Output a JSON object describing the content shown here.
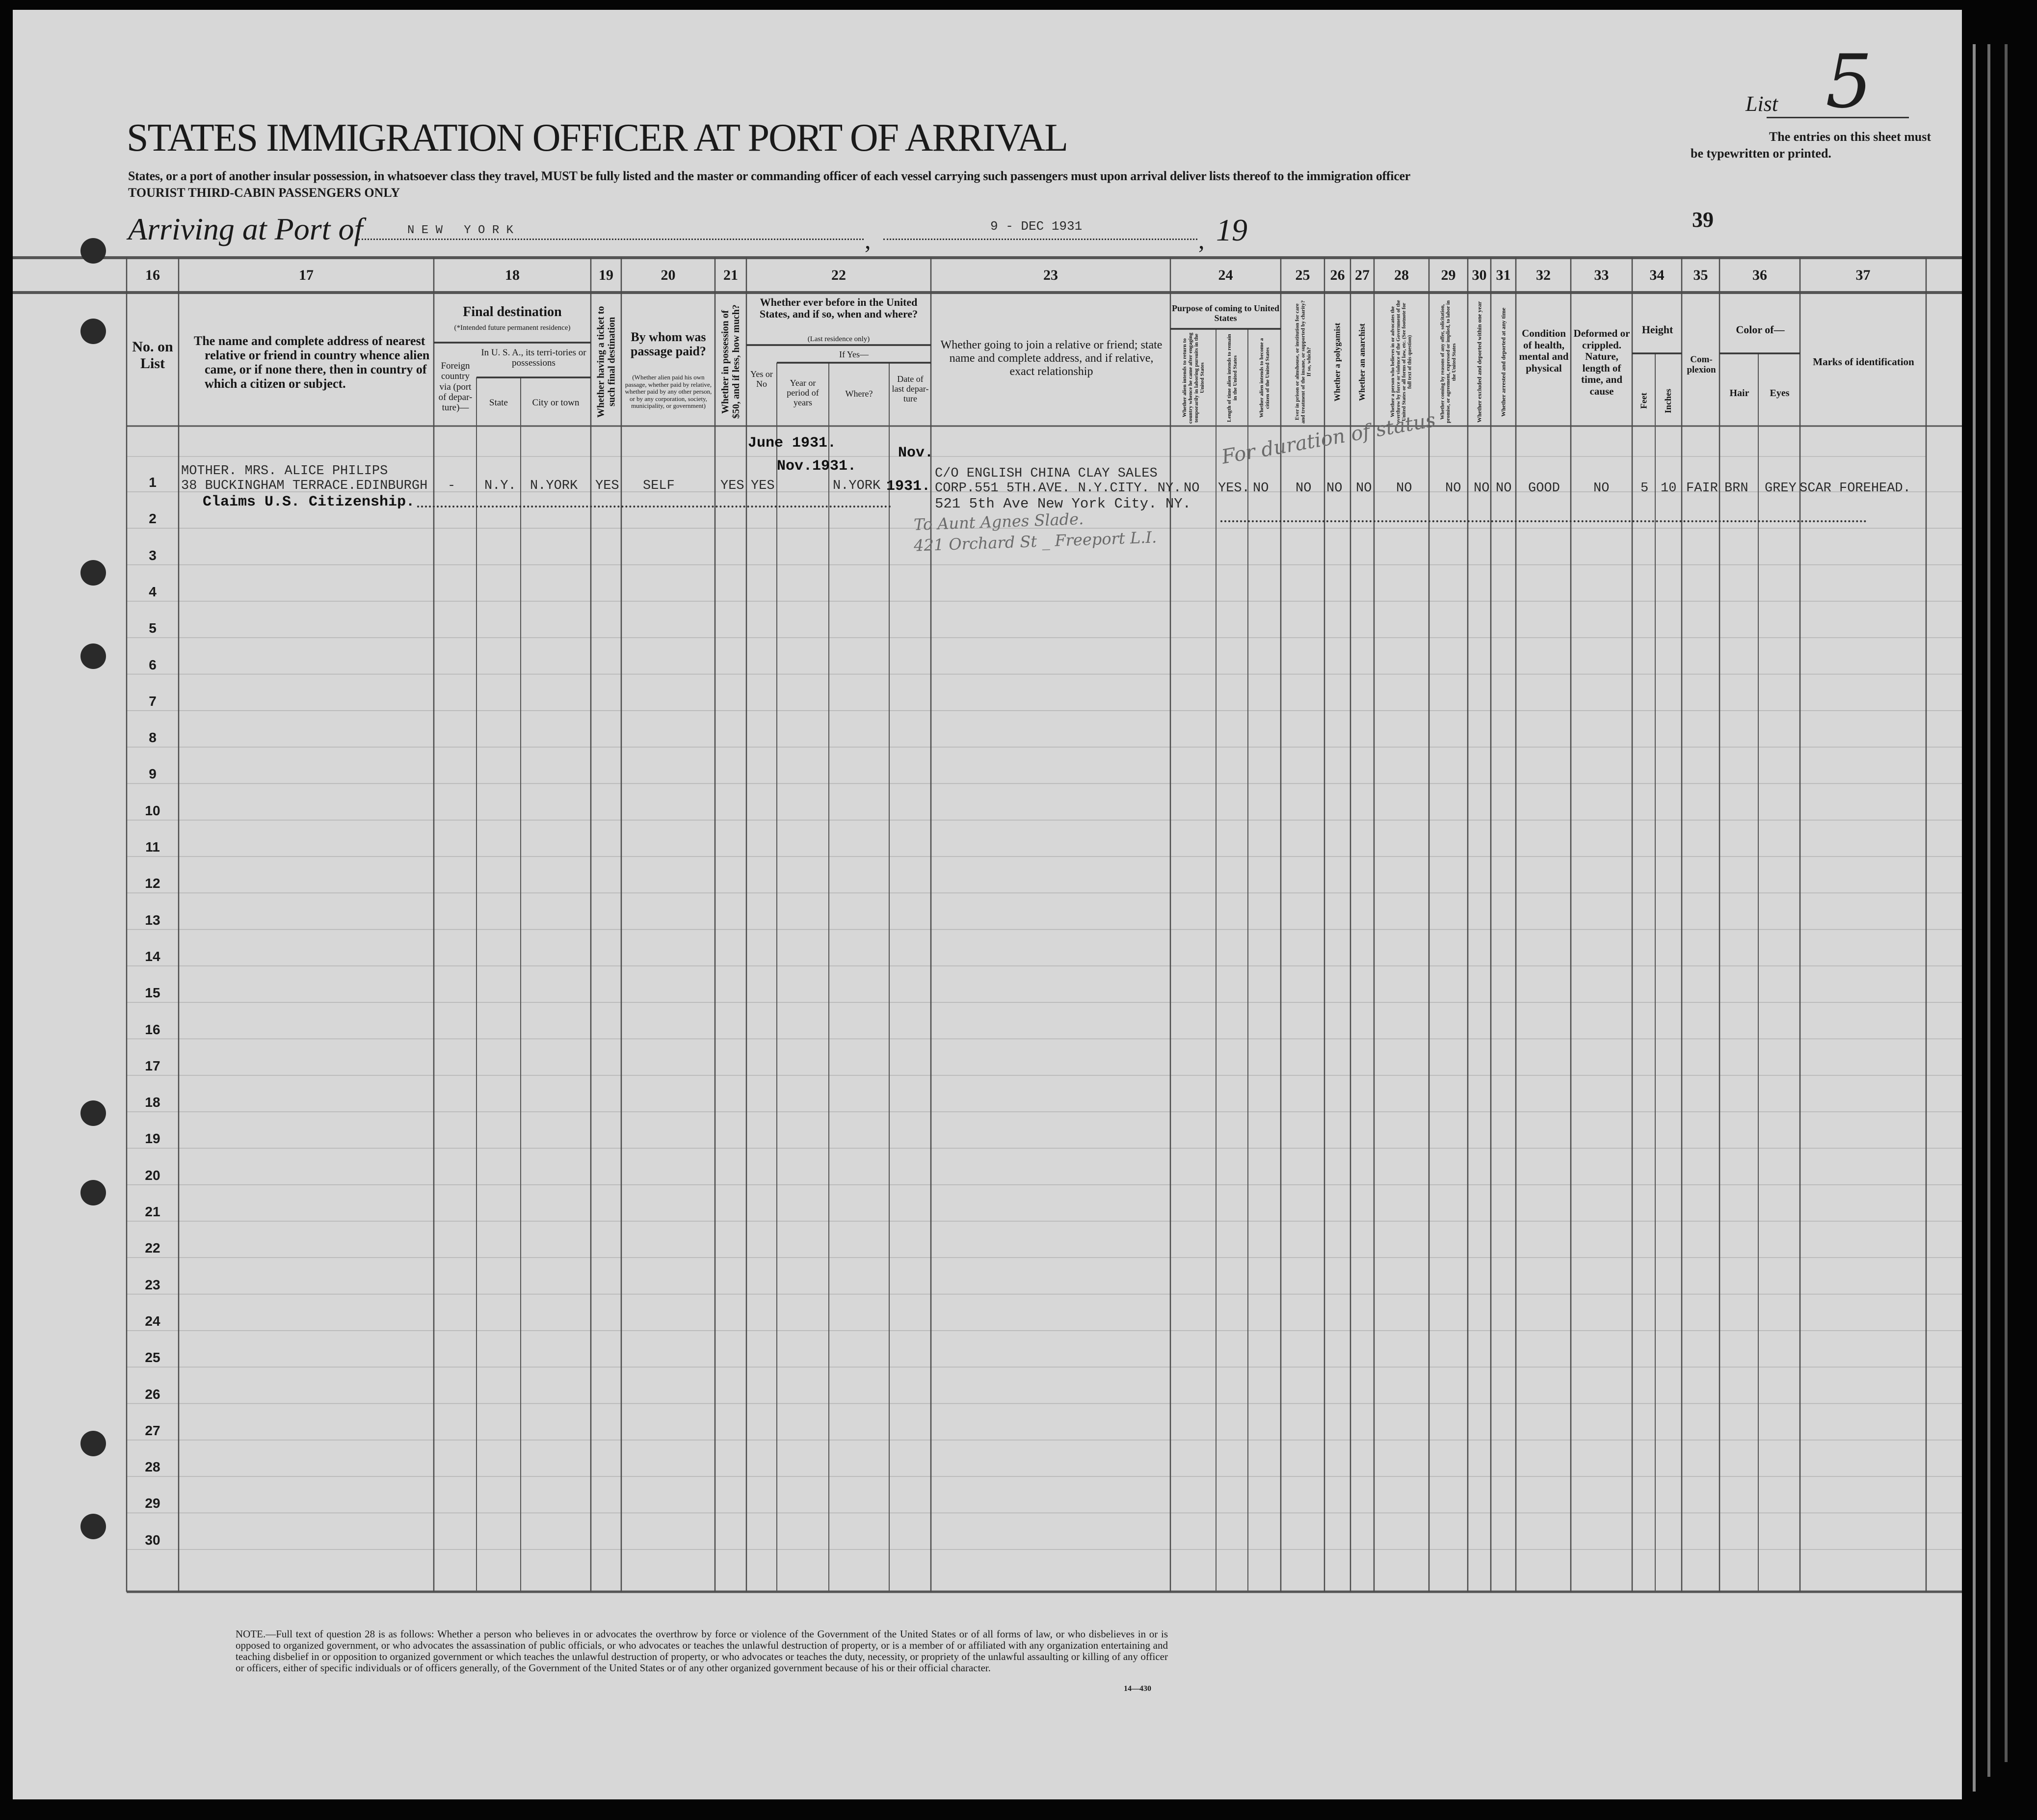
{
  "header": {
    "list_label": "List",
    "list_number": "5",
    "instructions_line1": "The entries on this sheet must",
    "instructions_line2": "be typewritten or printed.",
    "title": "STATES IMMIGRATION OFFICER AT PORT OF ARRIVAL",
    "subtitle": "States, or a port of another insular possession, in whatsoever class they travel, MUST be fully listed and the master or commanding officer of each vessel carrying such passengers must upon arrival deliver lists thereof to the immigration officer",
    "class_line": "TOURIST THIRD-CABIN PASSENGERS ONLY",
    "arriving_label": "Arriving at Port of",
    "port": "N E W   Y O R K",
    "date": "9 - DEC 1931",
    "year_prefix": "19",
    "sheet_number": "39"
  },
  "columns": [
    {
      "num": "16",
      "label": "No. on List"
    },
    {
      "num": "17",
      "label": "The name and complete address of nearest relative or friend in country whence alien came, or if none there, then in country of which a citizen or subject."
    },
    {
      "num": "18",
      "label": "Final destination",
      "note": "(*Intended future permanent residence)",
      "sub_foreign": "Foreign country via (port of depar-ture)—",
      "sub_usa": "In U. S. A., its terri-tories or possessions",
      "sub_state": "State",
      "sub_city": "City or town"
    },
    {
      "num": "19",
      "label": "Whether having a ticket to such final destination"
    },
    {
      "num": "20",
      "label": "By whom was passage paid?",
      "note": "(Whether alien paid his own passage, whether paid by relative, whether paid by any other person, or by any corporation, society, municipality, or government)"
    },
    {
      "num": "21",
      "label": "Whether in possession of $50, and if less, how much?"
    },
    {
      "num": "22",
      "label": "Whether ever before in the United States, and if so, when and where?",
      "note": "(Last residence only)",
      "sub_yesno": "Yes or No",
      "sub_ifyes": "If Yes—",
      "sub_year": "Year or period of years",
      "sub_where": "Where?",
      "sub_date": "Date of last depar-ture"
    },
    {
      "num": "23",
      "label": "Whether going to join a relative or friend; state name and complete address, and if relative, exact relationship"
    },
    {
      "num": "24",
      "label": "Purpose of coming to United States",
      "sub_a": "Whether alien intends to return to country whence he came after engaging temporarily in laboring pursuits in the United States",
      "sub_b": "Length of time alien intends to remain in the United States",
      "sub_c": "Whether alien intends to become a citizen of the United States"
    },
    {
      "num": "25",
      "label": "Ever in prison or almshouse, or institution for care and treatment of the insane, or supported by charity? If so, which?"
    },
    {
      "num": "26",
      "label": "Whether a polygamist"
    },
    {
      "num": "27",
      "label": "Whether an anarchist"
    },
    {
      "num": "28",
      "label": "Whether a person who believes in or advocates the overthrow by force or violence of the Government of the United States or all forms of law, etc. (See footnote for full text of this question)"
    },
    {
      "num": "29",
      "label": "Whether coming by reasons of any offer, solicitation, promise, or agreement, expressed or implied, to labor in the United States"
    },
    {
      "num": "30",
      "label": "Whether excluded and deported within one year"
    },
    {
      "num": "31",
      "label": "Whether arrested and deported at any time"
    },
    {
      "num": "32",
      "label": "Condition of health, mental and physical"
    },
    {
      "num": "33",
      "label": "Deformed or crippled. Nature, length of time, and cause"
    },
    {
      "num": "34",
      "label": "Height",
      "sub_feet": "Feet",
      "sub_inches": "Inches"
    },
    {
      "num": "35",
      "label": "Com-plexion"
    },
    {
      "num": "36",
      "label": "Color of—",
      "sub_hair": "Hair",
      "sub_eyes": "Eyes"
    },
    {
      "num": "37",
      "label": "Marks of identification"
    }
  ],
  "rows": [
    "1",
    "2",
    "3",
    "4",
    "5",
    "6",
    "7",
    "8",
    "9",
    "10",
    "11",
    "12",
    "13",
    "14",
    "15",
    "16",
    "17",
    "18",
    "19",
    "20",
    "21",
    "22",
    "23",
    "24",
    "25",
    "26",
    "27",
    "28",
    "29",
    "30"
  ],
  "entry": {
    "relative_line1": "MOTHER. MRS. ALICE PHILIPS",
    "relative_line2": "38 BUCKINGHAM TERRACE.EDINBURGH",
    "citizenship_claim": "Claims U.S. Citizenship.",
    "foreign_country": "-",
    "state": "N.Y.",
    "city": "N.YORK",
    "has_ticket": "YES",
    "passage_paid_by": "SELF",
    "possession_50": "YES",
    "before_in_us": "YES",
    "year_period_1": "June 1931.",
    "year_period_2": "Nov.1931.",
    "where": "N.YORK",
    "last_departure_month": "Nov.",
    "last_departure_year": "1931.",
    "join_line1": "C/O ENGLISH CHINA CLAY SALES",
    "join_line2": "CORP.551 5TH.AVE. N.Y.CITY. NY.",
    "join_line3": "521 5th Ave New York City. NY.",
    "join_handwritten1": "To Aunt Agnes Slade.",
    "join_handwritten2": "421 Orchard St _ Freeport L.I.",
    "return_after_labor": "NO",
    "length_of_stay": "YES.",
    "length_handwritten": "For duration of status",
    "become_citizen": "NO",
    "prison_almshouse": "NO",
    "polygamist": "NO",
    "anarchist": "NO",
    "overthrow": "NO",
    "offer_labor": "NO",
    "excluded": "NO",
    "arrested": "NO",
    "health": "GOOD",
    "deformed": "NO",
    "height_feet": "5",
    "height_inches": "10",
    "complexion": "FAIR",
    "hair": "BRN",
    "eyes": "GREY",
    "marks": "SCAR FOREHEAD."
  },
  "footer": {
    "note": "NOTE.—Full text of question 28 is as follows: Whether a person who believes in or advocates the overthrow by force or violence of the Government of the United States or of all forms of law, or who disbelieves in or is opposed to organized government, or who advocates the assassination of public officials, or who advocates or teaches the unlawful destruction of property, or is a member of or affiliated with any organization entertaining and teaching disbelief in or opposition to organized government or which teaches the unlawful destruction of property, or who advocates or teaches the duty, necessity, or propriety of the unlawful assaulting or killing of any officer or officers, either of specific individuals or of officers generally, of the Government of the United States or of any other organized government because of his or their official character.",
    "form_number": "14—430"
  }
}
